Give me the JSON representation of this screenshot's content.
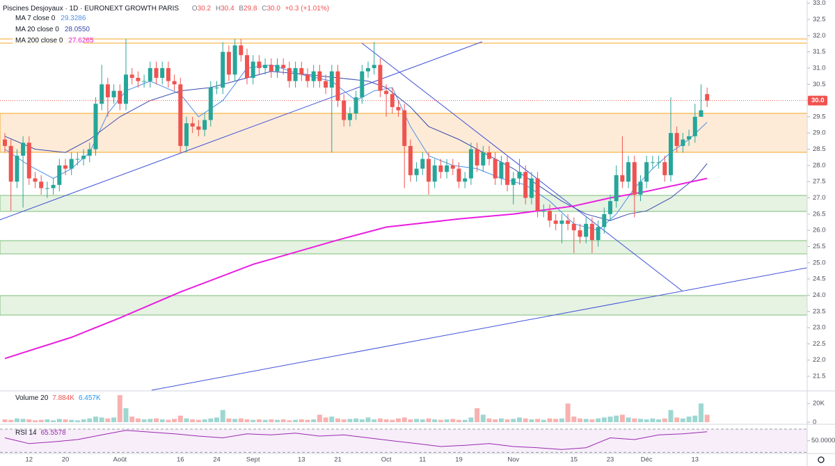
{
  "legend": {
    "symbol": "Piscines Desjoyaux · 1D · EURONEXT GROWTH PARIS",
    "ohlc": [
      [
        "O",
        "30.2"
      ],
      [
        "H",
        "30.4"
      ],
      [
        "B",
        "29.8"
      ],
      [
        "C",
        "30.0"
      ]
    ],
    "change": "+0.3 (+1.01%)"
  },
  "chart_data": [
    {
      "type": "candlestick",
      "up_color": "#26a69a",
      "down_color": "#ef5350",
      "categories": [
        null,
        null,
        null,
        null,
        "12",
        null,
        null,
        null,
        null,
        null,
        "20",
        null,
        null,
        null,
        null,
        null,
        null,
        null,
        null,
        "Août",
        null,
        null,
        null,
        null,
        null,
        null,
        null,
        null,
        null,
        "16",
        null,
        null,
        null,
        null,
        null,
        "24",
        null,
        null,
        null,
        null,
        null,
        "Sept",
        null,
        null,
        null,
        null,
        null,
        null,
        null,
        "13",
        null,
        null,
        null,
        null,
        null,
        "21",
        null,
        null,
        null,
        null,
        null,
        null,
        null,
        "Oct",
        null,
        null,
        null,
        null,
        null,
        "11",
        null,
        null,
        null,
        null,
        null,
        "19",
        null,
        null,
        null,
        null,
        null,
        null,
        null,
        null,
        "Nov",
        null,
        null,
        null,
        null,
        null,
        null,
        null,
        null,
        null,
        "15",
        null,
        null,
        null,
        null,
        null,
        "23",
        null,
        null,
        null,
        null,
        null,
        "Déc",
        null,
        null,
        null,
        null,
        null,
        null,
        null,
        "13",
        null,
        null
      ],
      "open": [
        28.8,
        28.6,
        27.5,
        28.3,
        28.7,
        27.6,
        27.5,
        27.3,
        27.3,
        27.4,
        28.0,
        27.9,
        28.2,
        28.2,
        28.3,
        28.5,
        29.9,
        30.5,
        30.1,
        30.3,
        29.9,
        30.8,
        30.7,
        30.6,
        30.6,
        31.0,
        30.7,
        31.0,
        30.6,
        30.5,
        28.6,
        29.3,
        29.2,
        29.1,
        29.4,
        30.4,
        30.4,
        31.5,
        30.8,
        31.7,
        31.4,
        30.7,
        31.2,
        31.0,
        31.1,
        30.9,
        31.1,
        31.0,
        30.6,
        31.0,
        30.8,
        30.6,
        30.9,
        30.6,
        30.4,
        30.9,
        30.0,
        29.4,
        29.6,
        30.1,
        30.9,
        31.0,
        31.1,
        30.3,
        30.2,
        29.8,
        29.7,
        28.6,
        27.7,
        27.9,
        28.2,
        27.5,
        28.0,
        27.8,
        28.0,
        27.9,
        27.5,
        27.6,
        28.5,
        28.0,
        28.4,
        28.2,
        27.6,
        28.1,
        27.4,
        27.6,
        27.8,
        27.0,
        27.6,
        26.6,
        26.6,
        26.3,
        26.2,
        26.3,
        26.2,
        26.0,
        25.8,
        26.2,
        25.7,
        26.1,
        26.5,
        26.9,
        27.7,
        27.5,
        28.1,
        27.1,
        27.5,
        28.1,
        28.1,
        28.1,
        27.7,
        29.0,
        28.6,
        28.8,
        28.9,
        29.5,
        30.2
      ],
      "high": [
        29.0,
        28.8,
        28.5,
        28.9,
        28.9,
        27.8,
        27.7,
        27.5,
        27.6,
        28.2,
        28.2,
        28.4,
        28.4,
        28.5,
        28.7,
        30.1,
        31.1,
        30.7,
        30.5,
        30.5,
        31.9,
        31.0,
        30.9,
        30.8,
        31.2,
        31.2,
        31.2,
        31.2,
        30.8,
        30.7,
        29.5,
        29.5,
        29.4,
        29.6,
        30.6,
        30.6,
        31.8,
        31.7,
        31.9,
        31.9,
        31.6,
        31.4,
        31.4,
        31.3,
        31.3,
        31.3,
        31.3,
        31.2,
        31.2,
        31.2,
        31.0,
        31.1,
        31.1,
        30.8,
        31.1,
        31.1,
        30.2,
        29.8,
        30.3,
        31.1,
        31.2,
        31.8,
        31.3,
        30.5,
        30.4,
        30.0,
        29.9,
        28.8,
        28.1,
        28.4,
        28.4,
        28.2,
        28.2,
        28.2,
        28.2,
        28.1,
        27.8,
        28.7,
        28.7,
        28.6,
        28.6,
        28.4,
        28.3,
        28.3,
        27.8,
        28.2,
        28.0,
        27.8,
        27.8,
        26.8,
        26.8,
        26.5,
        26.5,
        26.5,
        26.4,
        26.2,
        26.4,
        26.4,
        26.3,
        26.7,
        27.1,
        28.0,
        28.9,
        28.3,
        28.3,
        27.7,
        28.3,
        28.3,
        28.3,
        28.3,
        30.1,
        29.2,
        29.0,
        29.1,
        29.9,
        30.5,
        30.4
      ],
      "low": [
        28.4,
        26.6,
        27.3,
        26.7,
        27.4,
        27.3,
        27.1,
        27.0,
        27.1,
        27.2,
        27.7,
        27.7,
        28.0,
        28.0,
        28.1,
        28.3,
        29.7,
        29.5,
        29.9,
        29.7,
        29.7,
        30.5,
        30.4,
        30.4,
        30.4,
        30.5,
        30.5,
        30.4,
        30.3,
        28.4,
        28.4,
        29.0,
        28.9,
        28.9,
        29.2,
        30.2,
        30.2,
        30.6,
        30.6,
        31.2,
        30.5,
        30.5,
        30.8,
        30.8,
        30.7,
        30.7,
        30.8,
        30.4,
        30.4,
        30.6,
        30.4,
        30.4,
        30.4,
        30.2,
        28.4,
        29.8,
        29.2,
        29.2,
        29.4,
        29.9,
        30.7,
        30.8,
        30.1,
        29.5,
        29.6,
        29.5,
        27.3,
        27.5,
        27.5,
        27.7,
        27.1,
        27.3,
        27.6,
        27.6,
        27.7,
        27.3,
        27.3,
        27.4,
        27.8,
        27.8,
        28.0,
        27.4,
        27.4,
        27.2,
        26.8,
        27.4,
        26.8,
        26.8,
        26.4,
        26.4,
        26.1,
        26.0,
        25.6,
        26.0,
        25.3,
        25.6,
        25.6,
        25.3,
        25.5,
        25.9,
        26.3,
        26.7,
        27.3,
        27.3,
        26.4,
        26.9,
        27.3,
        27.9,
        27.9,
        27.5,
        27.5,
        28.4,
        28.4,
        28.6,
        28.7,
        29.5,
        29.8
      ],
      "close": [
        28.6,
        27.5,
        28.3,
        28.7,
        27.6,
        27.5,
        27.3,
        27.3,
        27.4,
        28.0,
        27.9,
        28.2,
        28.2,
        28.3,
        28.5,
        29.9,
        30.5,
        30.1,
        30.3,
        29.9,
        30.8,
        30.7,
        30.6,
        30.6,
        31.0,
        30.7,
        31.0,
        30.6,
        30.5,
        28.6,
        29.3,
        29.2,
        29.1,
        29.4,
        30.4,
        30.4,
        31.5,
        30.8,
        31.7,
        31.4,
        30.7,
        31.2,
        31.0,
        31.1,
        30.9,
        31.1,
        31.0,
        30.6,
        31.0,
        30.8,
        30.6,
        30.9,
        30.6,
        30.4,
        30.9,
        30.0,
        29.4,
        29.6,
        30.1,
        30.9,
        31.0,
        31.1,
        30.3,
        30.2,
        29.8,
        29.7,
        28.6,
        27.7,
        27.9,
        28.2,
        27.5,
        28.0,
        27.8,
        28.0,
        27.9,
        27.5,
        27.6,
        28.5,
        28.0,
        28.4,
        28.2,
        27.6,
        28.1,
        27.4,
        27.6,
        27.8,
        27.0,
        27.6,
        26.6,
        26.6,
        26.3,
        26.2,
        26.3,
        26.2,
        26.0,
        25.8,
        26.2,
        25.7,
        26.1,
        26.5,
        26.9,
        27.7,
        27.5,
        28.1,
        27.1,
        27.5,
        28.1,
        28.1,
        28.1,
        27.7,
        29.0,
        28.6,
        28.8,
        28.9,
        29.5,
        29.7,
        30.0
      ],
      "last_label": {
        "value": 30.0,
        "label": "30.0"
      },
      "series": [
        {
          "name": "MA 7 close 0",
          "value_label": "29.3286",
          "color": "#4f8fe6",
          "x": [
            0,
            4,
            8,
            11,
            14,
            17,
            20,
            24,
            29,
            32,
            36,
            40,
            44,
            49,
            54,
            58,
            61,
            64,
            67,
            70,
            74,
            78,
            82,
            86,
            90,
            94,
            98,
            101,
            104,
            107,
            110,
            113,
            116
          ],
          "values": [
            28.5,
            28.0,
            27.6,
            27.9,
            28.4,
            29.6,
            30.3,
            30.6,
            30.2,
            29.5,
            30.0,
            31.0,
            31.1,
            30.8,
            30.6,
            30.0,
            30.3,
            30.4,
            29.2,
            28.3,
            28.0,
            27.9,
            27.6,
            27.4,
            26.9,
            26.2,
            26.0,
            26.5,
            27.3,
            27.9,
            28.4,
            28.8,
            29.33
          ]
        },
        {
          "name": "MA 20 close 0",
          "value_label": "28.0550",
          "color": "#3949ab",
          "x": [
            0,
            5,
            10,
            14,
            19,
            24,
            29,
            34,
            38,
            44,
            50,
            55,
            60,
            63,
            67,
            70,
            75,
            80,
            84,
            88,
            92,
            96,
            100,
            103,
            106,
            110,
            114,
            116
          ],
          "values": [
            28.9,
            28.5,
            28.4,
            28.8,
            29.5,
            30.0,
            30.3,
            30.4,
            30.6,
            30.9,
            30.8,
            30.7,
            30.6,
            30.4,
            29.8,
            29.2,
            28.8,
            28.3,
            27.9,
            27.4,
            26.9,
            26.5,
            26.3,
            26.5,
            26.6,
            27.0,
            27.6,
            28.06
          ]
        },
        {
          "name": "MA 200 close 0",
          "value_label": "27.6265",
          "color": "#e91ee0",
          "x": [
            0,
            11,
            19,
            29,
            41,
            55,
            63,
            75,
            84,
            94,
            100,
            106,
            116
          ],
          "values": [
            22.05,
            22.7,
            23.3,
            24.1,
            24.95,
            25.7,
            26.1,
            26.35,
            26.5,
            26.75,
            27.0,
            27.2,
            27.6
          ]
        }
      ],
      "ylim": [
        21.05,
        33.1
      ],
      "yticks": [
        {
          "value": 21.5,
          "label": "21.5"
        },
        {
          "value": 22.0,
          "label": "22.0"
        },
        {
          "value": 22.5,
          "label": "22.5"
        },
        {
          "value": 23.0,
          "label": "23.0"
        },
        {
          "value": 23.5,
          "label": "23.5"
        },
        {
          "value": 24.0,
          "label": "24.0"
        },
        {
          "value": 24.5,
          "label": "24.5"
        },
        {
          "value": 25.0,
          "label": "25.0"
        },
        {
          "value": 25.5,
          "label": "25.5"
        },
        {
          "value": 26.0,
          "label": "26.0"
        },
        {
          "value": 26.5,
          "label": "26.5"
        },
        {
          "value": 27.0,
          "label": "27.0"
        },
        {
          "value": 27.5,
          "label": "27.5"
        },
        {
          "value": 28.0,
          "label": "28.0"
        },
        {
          "value": 28.5,
          "label": "28.5"
        },
        {
          "value": 29.0,
          "label": "29.0"
        },
        {
          "value": 29.5,
          "label": "29.5"
        },
        {
          "value": 30.0,
          "label": "30.0"
        },
        {
          "value": 30.5,
          "label": "30.5"
        },
        {
          "value": 31.0,
          "label": "31.0"
        },
        {
          "value": 31.5,
          "label": "31.5"
        },
        {
          "value": 32.0,
          "label": "32.0"
        },
        {
          "value": 32.5,
          "label": "32.5"
        },
        {
          "value": 33.0,
          "label": "33.0"
        }
      ]
    },
    {
      "type": "bar",
      "name": "Volume 20",
      "legend_values": [
        "7.884K",
        "6.457K"
      ],
      "values": [
        3000,
        2500,
        4000,
        3500,
        3000,
        2000,
        2500,
        3000,
        2000,
        3500,
        3000,
        2500,
        2000,
        3000,
        4000,
        6000,
        5000,
        4000,
        5000,
        29000,
        15000,
        6000,
        4000,
        3000,
        3500,
        4000,
        3000,
        2500,
        3500,
        7000,
        4000,
        3000,
        2500,
        3000,
        4000,
        5000,
        13000,
        4000,
        3500,
        4000,
        3000,
        2500,
        3000,
        2500,
        3000,
        2500,
        3000,
        2000,
        2500,
        3000,
        2500,
        3000,
        8000,
        5000,
        6000,
        4000,
        3000,
        3500,
        4000,
        3000,
        5000,
        3000,
        4000,
        3000,
        2500,
        4000,
        5000,
        3000,
        3500,
        3000,
        4000,
        3000,
        2500,
        3000,
        3500,
        2500,
        2500,
        5000,
        15000,
        8000,
        4000,
        3000,
        4000,
        3000,
        3500,
        5000,
        4000,
        3000,
        3500,
        2500,
        4000,
        3500,
        4000,
        20000,
        6000,
        4000,
        3500,
        3000,
        4000,
        5000,
        6000,
        7000,
        8000,
        5000,
        4000,
        3500,
        3000,
        4000,
        3000,
        4000,
        13000,
        5000,
        4000,
        6000,
        7000,
        20000,
        8000
      ],
      "ylim": [
        0,
        32000
      ],
      "yticks": [
        0,
        {
          "value": 20000,
          "label": "20K"
        }
      ]
    },
    {
      "type": "line",
      "name": "RSI 14",
      "value_label": "65.5578",
      "color": "#9c27b0",
      "x": [
        0,
        4,
        8,
        12,
        16,
        20,
        24,
        28,
        32,
        36,
        40,
        44,
        48,
        52,
        56,
        60,
        64,
        68,
        72,
        76,
        80,
        84,
        88,
        92,
        96,
        100,
        104,
        108,
        112,
        116
      ],
      "values": [
        55,
        45,
        48,
        52,
        60,
        68,
        65,
        62,
        58,
        55,
        62,
        60,
        63,
        58,
        60,
        55,
        50,
        45,
        40,
        42,
        45,
        40,
        38,
        35,
        38,
        55,
        52,
        60,
        62,
        65.56
      ],
      "ylim": [
        28,
        76
      ],
      "band": [
        30,
        70
      ],
      "yticks": [
        {
          "value": 50,
          "label": "50.0000"
        }
      ]
    }
  ]
}
